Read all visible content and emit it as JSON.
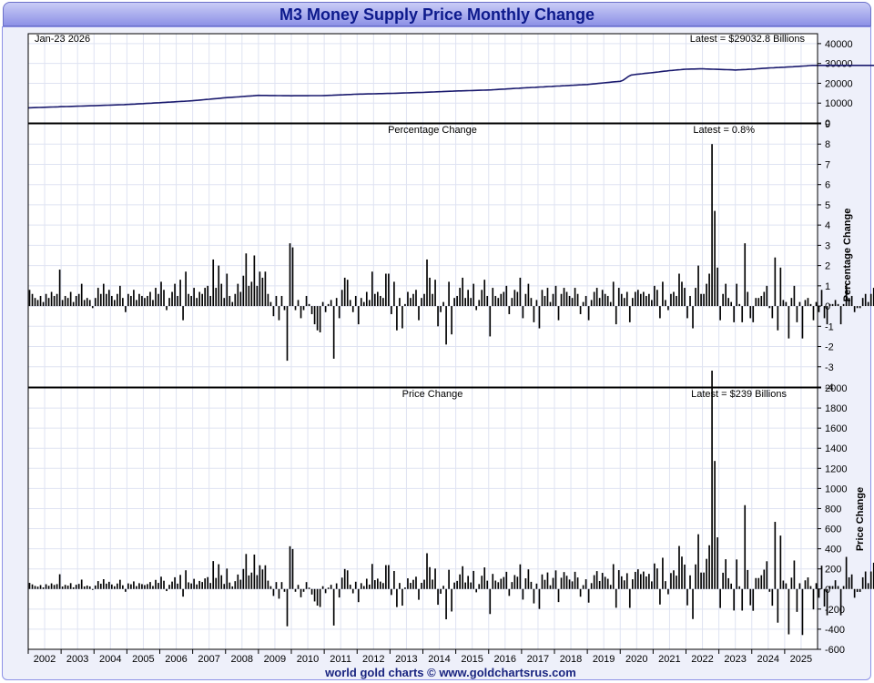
{
  "title": "M3 Money Supply Price Monthly Change",
  "footer": "world gold charts © www.goldchartsrus.com",
  "colors": {
    "line": "#1a1a6e",
    "bars": "#000000",
    "grid": "#dfe3f2",
    "title_text": "#0d1a8c"
  },
  "chart_data": [
    {
      "type": "line",
      "date_label": "Jan-23  2026",
      "latest_label": "Latest = $29032.8 Billions",
      "x_range": [
        2002.0,
        2025.85
      ],
      "ylim": [
        0,
        45000
      ],
      "yticks": [
        0,
        10000,
        20000,
        30000,
        40000
      ],
      "anchors": [
        [
          2002.0,
          7600
        ],
        [
          2003.0,
          8200
        ],
        [
          2004.0,
          8700
        ],
        [
          2005.0,
          9300
        ],
        [
          2006.0,
          10200
        ],
        [
          2007.0,
          11200
        ],
        [
          2008.0,
          12700
        ],
        [
          2009.0,
          13900
        ],
        [
          2010.0,
          13700
        ],
        [
          2011.0,
          13800
        ],
        [
          2012.0,
          14500
        ],
        [
          2013.0,
          14900
        ],
        [
          2014.0,
          15400
        ],
        [
          2015.0,
          16100
        ],
        [
          2016.0,
          16600
        ],
        [
          2017.0,
          17600
        ],
        [
          2018.0,
          18500
        ],
        [
          2019.0,
          19400
        ],
        [
          2020.0,
          21000
        ],
        [
          2020.1,
          21600
        ],
        [
          2020.3,
          24100
        ],
        [
          2020.6,
          24700
        ],
        [
          2021.0,
          25400
        ],
        [
          2021.5,
          26400
        ],
        [
          2022.0,
          27100
        ],
        [
          2022.5,
          27300
        ],
        [
          2023.0,
          27000
        ],
        [
          2023.5,
          26700
        ],
        [
          2024.0,
          27100
        ],
        [
          2024.5,
          27700
        ],
        [
          2025.0,
          28100
        ],
        [
          2025.5,
          28600
        ],
        [
          2025.85,
          29033
        ]
      ]
    },
    {
      "type": "bar",
      "title": "Percentage Change",
      "latest_label": "Latest = 0.8%",
      "ylabel": "Percentage Change",
      "ylim": [
        -4,
        9
      ],
      "yticks": [
        -4,
        -3,
        -2,
        -1,
        0,
        1,
        2,
        3,
        4,
        5,
        6,
        7,
        8,
        9
      ],
      "start": 2002.0,
      "values": [
        0.8,
        0.6,
        0.4,
        0.3,
        0.5,
        0.2,
        0.6,
        0.4,
        0.7,
        0.5,
        0.6,
        1.8,
        0.3,
        0.5,
        0.4,
        0.7,
        0.2,
        0.5,
        0.6,
        1.1,
        0.3,
        0.4,
        0.3,
        -0.1,
        0.4,
        0.9,
        0.6,
        1.1,
        0.6,
        0.8,
        0.5,
        0.3,
        0.6,
        1.0,
        0.4,
        -0.3,
        0.6,
        0.5,
        0.8,
        0.3,
        0.6,
        0.5,
        0.4,
        0.5,
        0.7,
        0.3,
        0.9,
        0.6,
        1.2,
        0.8,
        -0.2,
        0.4,
        0.7,
        1.1,
        0.5,
        1.3,
        -0.7,
        1.7,
        0.6,
        0.5,
        0.9,
        0.4,
        0.7,
        0.6,
        0.9,
        1.0,
        0.5,
        2.3,
        0.9,
        2.0,
        1.1,
        0.4,
        1.6,
        0.5,
        0.2,
        0.6,
        1.1,
        0.7,
        1.5,
        2.6,
        1.0,
        1.2,
        2.5,
        1.0,
        1.7,
        1.4,
        1.7,
        0.6,
        0.2,
        -0.5,
        0.5,
        -0.7,
        0.5,
        -0.2,
        -2.7,
        3.1,
        2.9,
        -0.2,
        0.3,
        -0.6,
        -0.2,
        0.5,
        0.1,
        -0.4,
        -0.9,
        -1.2,
        -1.3,
        0.2,
        -0.3,
        0.1,
        0.3,
        -2.6,
        0.4,
        -0.6,
        0.8,
        1.4,
        1.3,
        0.3,
        -0.3,
        0.5,
        -0.9,
        0.4,
        0.2,
        0.7,
        0.3,
        1.7,
        0.6,
        0.7,
        0.5,
        0.4,
        1.6,
        1.6,
        -0.4,
        1.2,
        -1.2,
        0.4,
        -1.1,
        0.1,
        0.7,
        0.4,
        0.6,
        0.8,
        -0.7,
        0.4,
        0.6,
        2.3,
        1.4,
        0.6,
        1.3,
        -1.0,
        -0.3,
        0.2,
        -1.9,
        1.2,
        -1.4,
        0.4,
        0.5,
        0.9,
        1.4,
        0.4,
        0.8,
        0.4,
        1.1,
        -0.2,
        0.3,
        0.8,
        1.3,
        0.5,
        -1.5,
        0.9,
        0.5,
        0.4,
        0.6,
        0.7,
        1.0,
        -0.4,
        0.4,
        0.8,
        0.7,
        1.4,
        -0.6,
        0.6,
        1.1,
        0.4,
        -0.8,
        0.3,
        -1.1,
        0.8,
        0.5,
        0.9,
        0.2,
        0.6,
        1.0,
        -0.7,
        0.6,
        0.9,
        0.7,
        0.5,
        0.4,
        0.9,
        0.6,
        -0.4,
        0.2,
        0.5,
        -0.7,
        0.3,
        0.7,
        0.9,
        0.4,
        0.8,
        0.6,
        0.5,
        0.2,
        1.2,
        -0.9,
        0.9,
        0.6,
        0.4,
        0.7,
        -0.8,
        0.4,
        0.7,
        0.8,
        0.6,
        0.7,
        0.5,
        0.6,
        0.3,
        1.0,
        0.8,
        -0.6,
        1.2,
        0.3,
        -0.2,
        0.6,
        0.7,
        0.5,
        1.6,
        1.2,
        0.9,
        -0.6,
        0.5,
        -1.1,
        0.9,
        2.0,
        0.6,
        0.6,
        1.1,
        1.6,
        8.0,
        4.7,
        1.9,
        -0.7,
        0.6,
        1.1,
        0.4,
        0.2,
        -0.8,
        1.1,
        0.1,
        -0.8,
        3.1,
        0.7,
        -0.6,
        -0.8,
        0.4,
        0.4,
        0.5,
        0.7,
        1.0,
        -0.1,
        -0.6,
        2.4,
        -1.2,
        1.9,
        0.3,
        0.2,
        -1.6,
        0.4,
        1.0,
        -0.8,
        0.2,
        -1.6,
        0.3,
        0.4,
        0.1,
        -0.7,
        0.2,
        -0.3,
        0.8,
        -0.6,
        -0.9,
        0.1,
        0.1,
        0.3,
        0.1,
        -0.9,
        0.1,
        1.1,
        0.4,
        0.5,
        -0.3,
        -0.1,
        -0.1,
        0.4,
        0.6,
        0.2,
        0.6,
        0.9,
        1.0,
        -0.3,
        0.3,
        -0.1,
        0.2,
        1.4,
        -1.0,
        0.5,
        0.4,
        0.6,
        0.2,
        0.3,
        0.6,
        0.4,
        0.8
      ]
    },
    {
      "type": "bar",
      "title": "Price Change",
      "latest_label": "Latest = $239 Billions",
      "ylabel": "Price Change",
      "ylim": [
        -600,
        2000
      ],
      "yticks": [
        -600,
        -400,
        -200,
        0,
        200,
        400,
        600,
        800,
        1000,
        1200,
        1400,
        1600,
        1800,
        2000
      ],
      "start": 2002.0,
      "value_source": "percentage_times_level",
      "xticks": [
        "2002",
        "2003",
        "2004",
        "2005",
        "2006",
        "2007",
        "2008",
        "2009",
        "2010",
        "2011",
        "2012",
        "2013",
        "2014",
        "2015",
        "2016",
        "2017",
        "2018",
        "2019",
        "2020",
        "2021",
        "2022",
        "2023",
        "2024",
        "2025"
      ]
    }
  ]
}
